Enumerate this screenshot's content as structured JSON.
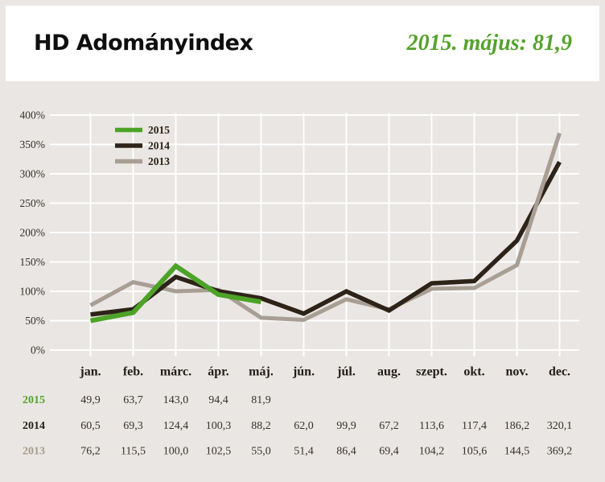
{
  "header": {
    "title": "HD Adományindex",
    "highlight": "2015. május: 81,9"
  },
  "chart_data": {
    "type": "line",
    "title": "HD Adományindex",
    "categories": [
      "jan.",
      "feb.",
      "márc.",
      "ápr.",
      "máj.",
      "jún.",
      "júl.",
      "aug.",
      "szept.",
      "okt.",
      "nov.",
      "dec."
    ],
    "ylim": [
      0,
      400
    ],
    "yticks": [
      0,
      50,
      100,
      150,
      200,
      250,
      300,
      350,
      400
    ],
    "ytick_labels": [
      "0%",
      "50%",
      "100%",
      "150%",
      "200%",
      "250%",
      "300%",
      "350%",
      "400%"
    ],
    "grid": true,
    "legend_position": "top-left",
    "legend_order": [
      "2015",
      "2014",
      "2013"
    ],
    "series": [
      {
        "name": "2013",
        "color": "#a89e93",
        "values": [
          76.2,
          115.5,
          100.0,
          102.5,
          55.0,
          51.4,
          86.4,
          69.4,
          104.2,
          105.6,
          144.5,
          369.2
        ]
      },
      {
        "name": "2014",
        "color": "#2d2318",
        "values": [
          60.5,
          69.3,
          124.4,
          100.3,
          88.2,
          62.0,
          99.9,
          67.2,
          113.6,
          117.4,
          186.2,
          320.1
        ]
      },
      {
        "name": "2015",
        "color": "#4da327",
        "values": [
          49.9,
          63.7,
          143.0,
          94.4,
          81.9
        ]
      }
    ]
  },
  "table": {
    "rows": [
      {
        "label": "2015",
        "color": "#55a22c",
        "values": [
          "49,9",
          "63,7",
          "143,0",
          "94,4",
          "81,9",
          "",
          "",
          "",
          "",
          "",
          "",
          ""
        ]
      },
      {
        "label": "2014",
        "color": "#25201a",
        "values": [
          "60,5",
          "69,3",
          "124,4",
          "100,3",
          "88,2",
          "62,0",
          "99,9",
          "67,2",
          "113,6",
          "117,4",
          "186,2",
          "320,1"
        ]
      },
      {
        "label": "2013",
        "color": "#a59c8f",
        "values": [
          "76,2",
          "115,5",
          "100,0",
          "102,5",
          "55,0",
          "51,4",
          "86,4",
          "69,4",
          "104,2",
          "105,6",
          "144,5",
          "369,2"
        ]
      }
    ]
  },
  "colors": {
    "page_background": "#e9e6e3",
    "header_background": "#ffffff",
    "gridline": "#ffffff",
    "accent_green": "#55a22c",
    "axis_text": "#33302c",
    "month_text": "#221d17",
    "table_value_text": "#37312a",
    "legend_text": "#2d2318"
  }
}
